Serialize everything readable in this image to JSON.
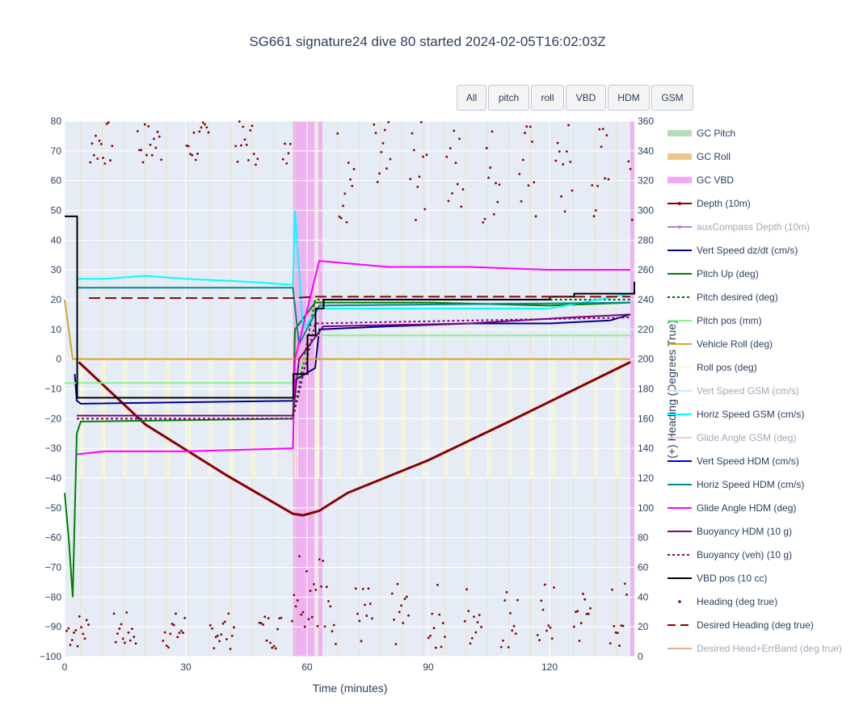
{
  "chart_data": {
    "type": "line",
    "title": "SG661 signature24 dive 80 started 2024-02-05T16:02:03Z",
    "xlabel": "Time (minutes)",
    "ylabel": "",
    "y2label": "(+) Heading (Degrees True)",
    "xlim": [
      0,
      141
    ],
    "ylim": [
      -100,
      80
    ],
    "y2lim": [
      0,
      360
    ],
    "x_ticks": [
      "0",
      "30",
      "60",
      "90",
      "120"
    ],
    "y_ticks": [
      "80",
      "70",
      "60",
      "50",
      "40",
      "30",
      "20",
      "10",
      "0",
      "−10",
      "−20",
      "−30",
      "−40",
      "−50",
      "−60",
      "−70",
      "−80",
      "−90",
      "−100"
    ],
    "y2_ticks": [
      "360",
      "340",
      "320",
      "300",
      "280",
      "260",
      "240",
      "220",
      "200",
      "180",
      "160",
      "140",
      "120",
      "100",
      "80",
      "60",
      "40",
      "20",
      "0"
    ],
    "grid": true,
    "background_bands": [
      {
        "name": "GC Pitch",
        "color": "#cfe8cf"
      },
      {
        "name": "GC Roll",
        "color": "#f3dca8"
      },
      {
        "name": "GC VBD",
        "color": "#f0a8f0",
        "intervals": [
          [
            56.5,
            61.8
          ],
          [
            62.8,
            63.8
          ],
          [
            140.0,
            141.0
          ]
        ]
      }
    ],
    "series": [
      {
        "name": "Depth (10m)",
        "color": "#8b0000",
        "points": [
          [
            3.5,
            -1
          ],
          [
            20,
            -22
          ],
          [
            40,
            -39
          ],
          [
            56.5,
            -52
          ],
          [
            59,
            -52.5
          ],
          [
            63,
            -51
          ],
          [
            70,
            -45
          ],
          [
            90,
            -34
          ],
          [
            110,
            -21
          ],
          [
            140,
            -1
          ]
        ]
      },
      {
        "name": "Vert Speed dz/dt (cm/s)",
        "color": "#00008b",
        "points": [
          [
            2.5,
            -5
          ],
          [
            3,
            -14
          ],
          [
            4,
            -15
          ],
          [
            56.5,
            -14
          ],
          [
            57,
            -7
          ],
          [
            62,
            -3
          ],
          [
            63,
            10
          ],
          [
            80,
            11
          ],
          [
            100,
            12
          ],
          [
            120,
            12
          ],
          [
            135,
            13
          ],
          [
            140,
            15
          ]
        ]
      },
      {
        "name": "Pitch Up (deg)",
        "color": "#008000",
        "points": [
          [
            0,
            -45
          ],
          [
            1,
            -60
          ],
          [
            2,
            -80
          ],
          [
            3,
            -25
          ],
          [
            4,
            -21
          ],
          [
            56.5,
            -20
          ],
          [
            57,
            10
          ],
          [
            62,
            19
          ],
          [
            90,
            19
          ],
          [
            120,
            18
          ],
          [
            140,
            19
          ]
        ]
      },
      {
        "name": "Pitch desired (deg)",
        "color": "#006400",
        "dash": true,
        "points": [
          [
            3,
            -20
          ],
          [
            56.5,
            -20
          ],
          [
            62,
            20
          ],
          [
            140,
            20
          ]
        ]
      },
      {
        "name": "Pitch pos (mm)",
        "color": "#90ee90",
        "points": [
          [
            0,
            -8
          ],
          [
            56.5,
            -8
          ],
          [
            62,
            8
          ],
          [
            140,
            8
          ]
        ]
      },
      {
        "name": "Vehicle Roll (deg)",
        "color": "#daa520",
        "points": [
          [
            0,
            20
          ],
          [
            2,
            0
          ],
          [
            3,
            0
          ],
          [
            56.5,
            0
          ],
          [
            60,
            0
          ],
          [
            140,
            0
          ]
        ]
      },
      {
        "name": "Horiz Speed GSM (cm/s)",
        "color": "#00ffff",
        "points": [
          [
            3,
            27
          ],
          [
            10,
            27
          ],
          [
            20,
            28
          ],
          [
            30,
            27
          ],
          [
            45,
            26
          ],
          [
            56.5,
            25
          ],
          [
            57,
            50
          ],
          [
            59,
            10
          ],
          [
            63,
            17
          ],
          [
            80,
            17
          ],
          [
            100,
            17
          ],
          [
            120,
            17
          ],
          [
            140,
            22
          ]
        ]
      },
      {
        "name": "Horiz Speed HDM (cm/s)",
        "color": "#008b8b",
        "points": [
          [
            3,
            24
          ],
          [
            56.5,
            24
          ],
          [
            58,
            5
          ],
          [
            63,
            18
          ],
          [
            140,
            19
          ]
        ]
      },
      {
        "name": "Glide Angle HDM (deg)",
        "color": "#ff00ff",
        "points": [
          [
            3,
            -32
          ],
          [
            10,
            -31
          ],
          [
            30,
            -31
          ],
          [
            56.5,
            -30
          ],
          [
            57,
            0
          ],
          [
            63,
            33
          ],
          [
            80,
            31
          ],
          [
            100,
            31
          ],
          [
            120,
            30
          ],
          [
            140,
            30
          ]
        ]
      },
      {
        "name": "Buoyancy HDM (10 g)",
        "color": "#800080",
        "points": [
          [
            3,
            -19
          ],
          [
            56.5,
            -19
          ],
          [
            58,
            0
          ],
          [
            64,
            11
          ],
          [
            100,
            12
          ],
          [
            125,
            14
          ],
          [
            140,
            15
          ]
        ]
      },
      {
        "name": "Buoyancy (veh) (10 g)",
        "color": "#800080",
        "dash": true,
        "points": [
          [
            3,
            -20
          ],
          [
            56.5,
            -20
          ],
          [
            62,
            12
          ],
          [
            140,
            14
          ]
        ]
      },
      {
        "name": "VBD pos (10 cc)",
        "color": "#000000",
        "step": true,
        "points": [
          [
            0,
            48
          ],
          [
            3,
            48
          ],
          [
            3.1,
            -13
          ],
          [
            56.5,
            -13
          ],
          [
            56.6,
            -5
          ],
          [
            60,
            -5
          ],
          [
            60.1,
            8
          ],
          [
            62,
            8
          ],
          [
            62.1,
            17
          ],
          [
            64,
            17
          ],
          [
            64.1,
            20
          ],
          [
            120,
            20
          ],
          [
            120.1,
            21
          ],
          [
            126,
            21
          ],
          [
            126.1,
            22
          ],
          [
            140,
            22
          ],
          [
            141,
            26
          ]
        ]
      },
      {
        "name": "Desired Heading (deg true)",
        "color": "#8b0000",
        "dash": true,
        "axis": "y2",
        "points": [
          [
            6,
            241
          ],
          [
            56.5,
            241
          ],
          [
            62,
            242
          ],
          [
            140,
            242
          ]
        ]
      }
    ],
    "legend_items": [
      {
        "name": "GC Pitch",
        "kind": "band",
        "color": "#b9ddb9",
        "dim": false
      },
      {
        "name": "GC Roll",
        "kind": "band",
        "color": "#ecc88a",
        "dim": false
      },
      {
        "name": "GC VBD",
        "kind": "band",
        "color": "#f7a6f7",
        "dim": false
      },
      {
        "name": "Depth (10m)",
        "kind": "line-marker",
        "color": "#8b0000",
        "dim": false
      },
      {
        "name": "auxCompass Depth (10m)",
        "kind": "line-marker",
        "color": "#b07ed8",
        "dim": true
      },
      {
        "name": "Vert Speed dz/dt (cm/s)",
        "kind": "line",
        "color": "#00008b",
        "dim": false
      },
      {
        "name": "Pitch Up (deg)",
        "kind": "line",
        "color": "#008000",
        "dim": false
      },
      {
        "name": "Pitch desired (deg)",
        "kind": "dot",
        "color": "#006400",
        "dim": false
      },
      {
        "name": "Pitch pos (mm)",
        "kind": "line",
        "color": "#90ee90",
        "dim": false
      },
      {
        "name": "Vehicle Roll (deg)",
        "kind": "line",
        "color": "#daa520",
        "dim": false
      },
      {
        "name": "Roll pos (deg)",
        "kind": "line",
        "color": "#fffacd",
        "dim": false
      },
      {
        "name": "Vert Speed GSM (cm/s)",
        "kind": "line",
        "color": "#d0e8f8",
        "dim": true
      },
      {
        "name": "Horiz Speed GSM (cm/s)",
        "kind": "line",
        "color": "#00ffff",
        "dim": false
      },
      {
        "name": "Glide Angle GSM (deg)",
        "kind": "line",
        "color": "#f4bcf4",
        "dim": true
      },
      {
        "name": "Vert Speed HDM (cm/s)",
        "kind": "line",
        "color": "#0000cd",
        "dim": false
      },
      {
        "name": "Horiz Speed HDM (cm/s)",
        "kind": "line",
        "color": "#008b8b",
        "dim": false
      },
      {
        "name": "Glide Angle HDM (deg)",
        "kind": "line",
        "color": "#ff00ff",
        "dim": false
      },
      {
        "name": "Buoyancy HDM (10 g)",
        "kind": "line",
        "color": "#800080",
        "dim": false
      },
      {
        "name": "Buoyancy (veh) (10 g)",
        "kind": "dot",
        "color": "#800080",
        "dim": false
      },
      {
        "name": "VBD pos (10 cc)",
        "kind": "line",
        "color": "#000000",
        "dim": false
      },
      {
        "name": "Heading (deg true)",
        "kind": "marker",
        "color": "#8b0000",
        "dim": false
      },
      {
        "name": "Desired Heading (deg true)",
        "kind": "dash",
        "color": "#8b0000",
        "dim": false
      },
      {
        "name": "Desired Head+ErrBand (deg true)",
        "kind": "line",
        "color": "#e8b088",
        "dim": true
      }
    ]
  },
  "buttons": {
    "all": "All",
    "pitch": "pitch",
    "roll": "roll",
    "vbd": "VBD",
    "hdm": "HDM",
    "gsm": "GSM"
  }
}
